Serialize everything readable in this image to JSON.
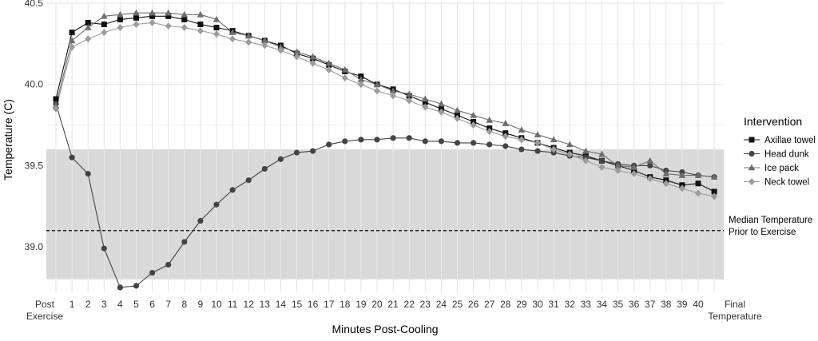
{
  "chart_data": {
    "type": "line",
    "title": "",
    "xlabel": "Minutes Post-Cooling",
    "ylabel": "Temperature (C)",
    "ylim": [
      38.72,
      40.51
    ],
    "yticks": [
      39.0,
      39.5,
      40.0,
      40.5
    ],
    "ytick_labels": [
      "39.0",
      "39.5",
      "40.0",
      "40.5"
    ],
    "categories": [
      "Post\nExercise",
      "1",
      "2",
      "3",
      "4",
      "5",
      "6",
      "7",
      "8",
      "9",
      "10",
      "11",
      "12",
      "13",
      "14",
      "15",
      "16",
      "17",
      "18",
      "19",
      "20",
      "21",
      "22",
      "23",
      "24",
      "25",
      "26",
      "27",
      "28",
      "29",
      "30",
      "31",
      "32",
      "33",
      "34",
      "35",
      "36",
      "37",
      "38",
      "39",
      "40",
      "Final\nTemperature"
    ],
    "grid": true,
    "shaded_band": {
      "y_from": 38.8,
      "y_to": 39.6,
      "color": "#d9d9d9"
    },
    "reference_line": {
      "y": 39.1,
      "style": "dashed",
      "label_lines": [
        "Median Temperature",
        "Prior to Exercise"
      ]
    },
    "legend": {
      "title": "Intervention",
      "placement": "right"
    },
    "series": [
      {
        "name": "Axillae towel",
        "marker": "square",
        "color": "#111111",
        "values": [
          39.91,
          40.32,
          40.38,
          40.37,
          40.4,
          40.41,
          40.42,
          40.42,
          40.4,
          40.37,
          40.35,
          40.33,
          40.3,
          40.27,
          40.24,
          40.19,
          40.16,
          40.12,
          40.08,
          40.05,
          40.0,
          39.97,
          39.93,
          39.89,
          39.85,
          39.81,
          39.77,
          39.73,
          39.7,
          39.67,
          39.64,
          39.61,
          39.58,
          39.56,
          39.53,
          39.5,
          39.47,
          39.43,
          39.41,
          39.38,
          39.39,
          39.34
        ]
      },
      {
        "name": "Head dunk",
        "marker": "circle",
        "color": "#444444",
        "values": [
          39.88,
          39.55,
          39.45,
          38.99,
          38.75,
          38.76,
          38.84,
          38.89,
          39.03,
          39.16,
          39.26,
          39.35,
          39.41,
          39.48,
          39.54,
          39.58,
          39.59,
          39.63,
          39.65,
          39.66,
          39.66,
          39.67,
          39.67,
          39.65,
          39.65,
          39.64,
          39.64,
          39.63,
          39.62,
          39.6,
          39.59,
          39.58,
          39.56,
          39.55,
          39.53,
          39.51,
          39.5,
          39.5,
          39.47,
          39.46,
          39.44,
          39.43
        ]
      },
      {
        "name": "Ice pack",
        "marker": "triangle",
        "color": "#6e6e6e",
        "values": [
          39.87,
          40.27,
          40.35,
          40.42,
          40.43,
          40.44,
          40.44,
          40.44,
          40.43,
          40.43,
          40.4,
          40.32,
          40.3,
          40.27,
          40.23,
          40.2,
          40.17,
          40.13,
          40.09,
          40.03,
          40.0,
          39.96,
          39.94,
          39.91,
          39.88,
          39.84,
          39.81,
          39.78,
          39.76,
          39.72,
          39.69,
          39.66,
          39.63,
          39.59,
          39.57,
          39.5,
          39.49,
          39.53,
          39.45,
          39.44,
          39.44,
          39.43
        ]
      },
      {
        "name": "Neck towel",
        "marker": "diamond",
        "color": "#9c9c9c",
        "values": [
          39.85,
          40.23,
          40.28,
          40.32,
          40.35,
          40.37,
          40.38,
          40.36,
          40.35,
          40.33,
          40.31,
          40.28,
          40.26,
          40.24,
          40.21,
          40.17,
          40.13,
          40.09,
          40.04,
          40.0,
          39.96,
          39.93,
          39.9,
          39.86,
          39.83,
          39.79,
          39.75,
          39.71,
          39.68,
          39.66,
          39.64,
          39.6,
          39.57,
          39.53,
          39.49,
          39.47,
          39.45,
          39.42,
          39.39,
          39.36,
          39.33,
          39.31
        ]
      }
    ]
  }
}
